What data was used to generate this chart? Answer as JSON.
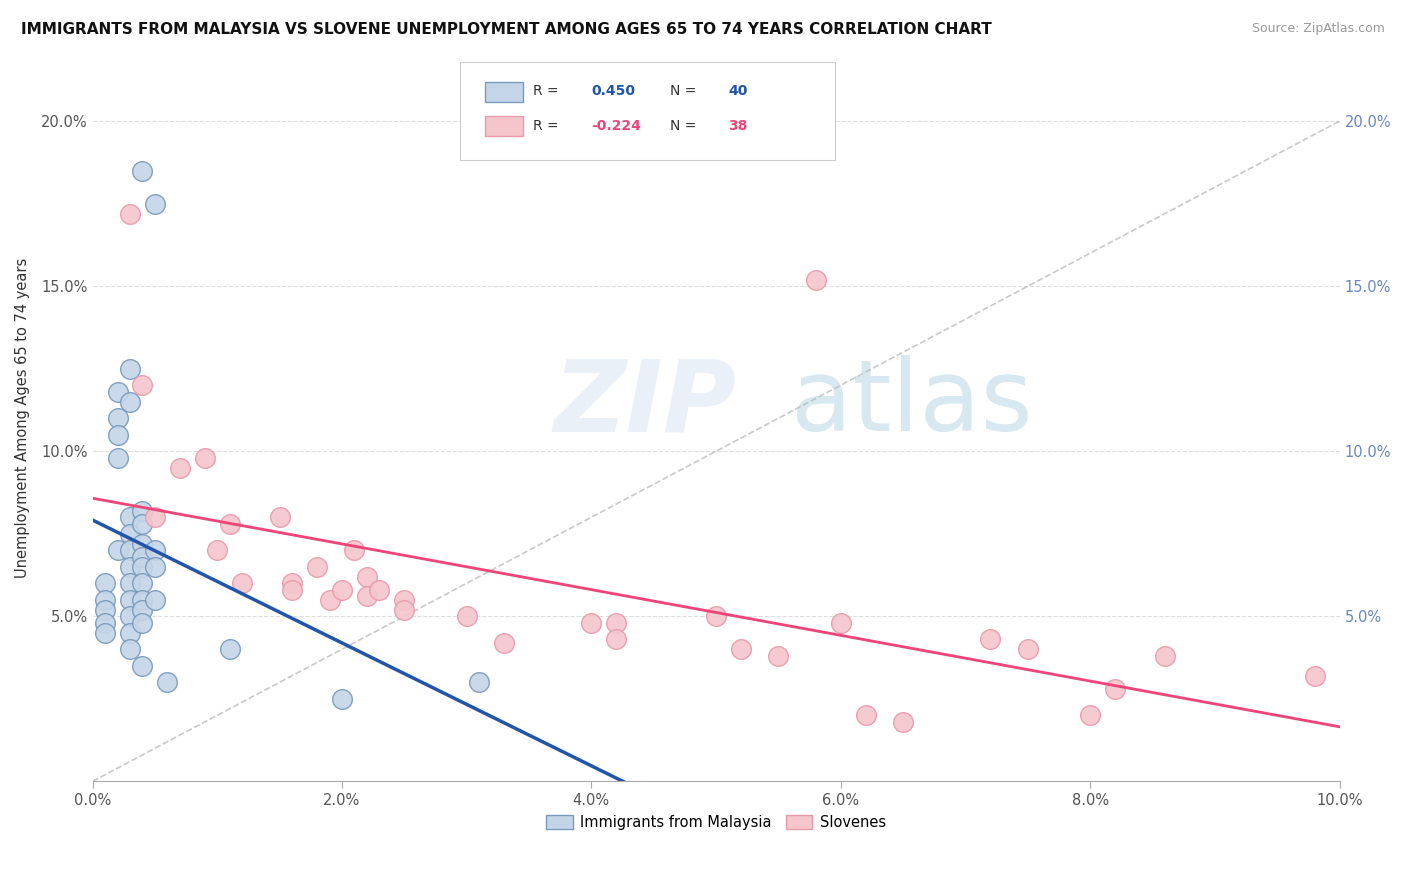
{
  "title": "IMMIGRANTS FROM MALAYSIA VS SLOVENE UNEMPLOYMENT AMONG AGES 65 TO 74 YEARS CORRELATION CHART",
  "source": "Source: ZipAtlas.com",
  "ylabel": "Unemployment Among Ages 65 to 74 years",
  "malaysia_color_face": "#C5D5E8",
  "malaysia_color_edge": "#7799BB",
  "slovene_color_face": "#F5C5CC",
  "slovene_color_edge": "#E899AA",
  "malaysia_line_color": "#2255AA",
  "slovene_line_color": "#EE4477",
  "diagonal_color": "#BBBBBB",
  "background_color": "#FFFFFF",
  "malaysia_points": [
    [
      0.001,
      0.06
    ],
    [
      0.001,
      0.055
    ],
    [
      0.001,
      0.052
    ],
    [
      0.001,
      0.048
    ],
    [
      0.001,
      0.045
    ],
    [
      0.002,
      0.118
    ],
    [
      0.002,
      0.11
    ],
    [
      0.002,
      0.105
    ],
    [
      0.002,
      0.098
    ],
    [
      0.002,
      0.07
    ],
    [
      0.003,
      0.125
    ],
    [
      0.003,
      0.115
    ],
    [
      0.003,
      0.08
    ],
    [
      0.003,
      0.075
    ],
    [
      0.003,
      0.07
    ],
    [
      0.003,
      0.065
    ],
    [
      0.003,
      0.06
    ],
    [
      0.003,
      0.055
    ],
    [
      0.003,
      0.05
    ],
    [
      0.003,
      0.045
    ],
    [
      0.003,
      0.04
    ],
    [
      0.004,
      0.185
    ],
    [
      0.004,
      0.082
    ],
    [
      0.004,
      0.078
    ],
    [
      0.004,
      0.072
    ],
    [
      0.004,
      0.068
    ],
    [
      0.004,
      0.065
    ],
    [
      0.004,
      0.06
    ],
    [
      0.004,
      0.055
    ],
    [
      0.004,
      0.052
    ],
    [
      0.004,
      0.048
    ],
    [
      0.004,
      0.035
    ],
    [
      0.005,
      0.175
    ],
    [
      0.005,
      0.07
    ],
    [
      0.005,
      0.065
    ],
    [
      0.005,
      0.055
    ],
    [
      0.006,
      0.03
    ],
    [
      0.011,
      0.04
    ],
    [
      0.02,
      0.025
    ],
    [
      0.031,
      0.03
    ]
  ],
  "slovene_points": [
    [
      0.003,
      0.172
    ],
    [
      0.004,
      0.12
    ],
    [
      0.005,
      0.08
    ],
    [
      0.007,
      0.095
    ],
    [
      0.009,
      0.098
    ],
    [
      0.01,
      0.07
    ],
    [
      0.011,
      0.078
    ],
    [
      0.012,
      0.06
    ],
    [
      0.015,
      0.08
    ],
    [
      0.016,
      0.06
    ],
    [
      0.016,
      0.058
    ],
    [
      0.018,
      0.065
    ],
    [
      0.019,
      0.055
    ],
    [
      0.02,
      0.058
    ],
    [
      0.021,
      0.07
    ],
    [
      0.022,
      0.062
    ],
    [
      0.022,
      0.056
    ],
    [
      0.023,
      0.058
    ],
    [
      0.025,
      0.055
    ],
    [
      0.025,
      0.052
    ],
    [
      0.03,
      0.05
    ],
    [
      0.033,
      0.042
    ],
    [
      0.04,
      0.048
    ],
    [
      0.042,
      0.048
    ],
    [
      0.042,
      0.043
    ],
    [
      0.05,
      0.05
    ],
    [
      0.052,
      0.04
    ],
    [
      0.055,
      0.038
    ],
    [
      0.058,
      0.152
    ],
    [
      0.06,
      0.048
    ],
    [
      0.062,
      0.02
    ],
    [
      0.065,
      0.018
    ],
    [
      0.072,
      0.043
    ],
    [
      0.075,
      0.04
    ],
    [
      0.08,
      0.02
    ],
    [
      0.082,
      0.028
    ],
    [
      0.086,
      0.038
    ],
    [
      0.098,
      0.032
    ]
  ]
}
